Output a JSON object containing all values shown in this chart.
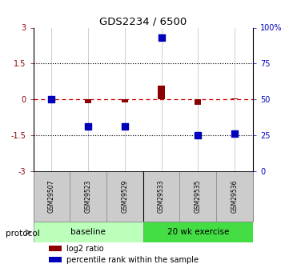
{
  "title": "GDS2234 / 6500",
  "samples": [
    "GSM29507",
    "GSM29523",
    "GSM29529",
    "GSM29533",
    "GSM29535",
    "GSM29536"
  ],
  "log2_ratios": [
    0.02,
    -0.15,
    -0.12,
    0.58,
    -0.22,
    0.04
  ],
  "percentile_ranks": [
    50,
    31,
    31,
    93,
    25,
    26
  ],
  "baseline_samples": [
    0,
    1,
    2
  ],
  "exercise_samples": [
    3,
    4,
    5
  ],
  "ylim_left": [
    -3,
    3
  ],
  "yticks_left": [
    -3,
    -1.5,
    0,
    1.5,
    3
  ],
  "ytick_labels_left": [
    "-3",
    "-1.5",
    "0",
    "1.5",
    "3"
  ],
  "yticks_right_pct": [
    0,
    25,
    50,
    75,
    100
  ],
  "ytick_labels_right": [
    "0",
    "25",
    "50",
    "75",
    "100%"
  ],
  "hlines": [
    1.5,
    -1.5
  ],
  "red_color": "#8B0000",
  "blue_color": "#0000BB",
  "dashed_line_color": "#CC0000",
  "baseline_color": "#BBFFBB",
  "exercise_color": "#44DD44",
  "sample_box_color": "#CCCCCC",
  "protocol_label": "protocol",
  "baseline_label": "baseline",
  "exercise_label": "20 wk exercise",
  "legend_red": "log2 ratio",
  "legend_blue": "percentile rank within the sample"
}
